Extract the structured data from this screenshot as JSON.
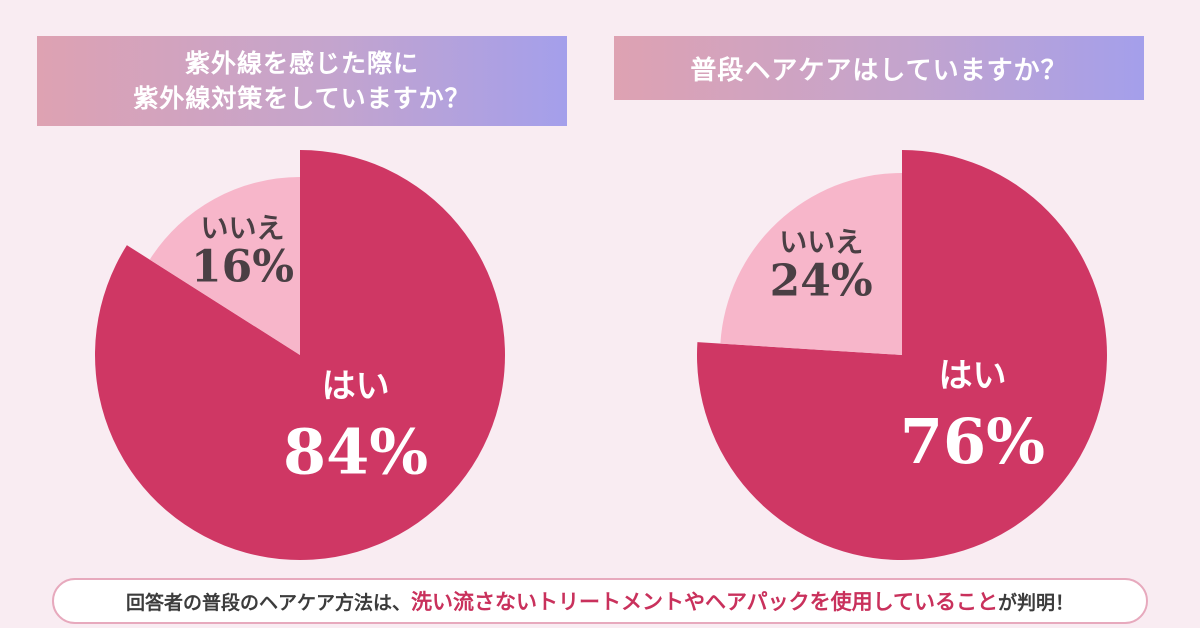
{
  "colors": {
    "yes": "#cf3764",
    "no": "#f7b6ca",
    "yes_text": "#ffffff",
    "no_text": "#4a3f44"
  },
  "footer": {
    "prefix": "回答者の普段のヘアケア方法は、",
    "highlight": "洗い流さないトリートメントやヘアパックを使用していること",
    "suffix": "が判明！"
  },
  "chart_data": [
    {
      "type": "pie",
      "title_lines": [
        "紫外線を感じた際に",
        "紫外線対策をしていますか？"
      ],
      "slices": [
        {
          "label": "はい",
          "value": 84,
          "value_text": "84%",
          "color": "#cf3764"
        },
        {
          "label": "いいえ",
          "value": 16,
          "value_text": "16%",
          "color": "#f7b6ca"
        }
      ]
    },
    {
      "type": "pie",
      "title_lines": [
        "普段ヘアケアはしていますか？"
      ],
      "slices": [
        {
          "label": "はい",
          "value": 76,
          "value_text": "76%",
          "color": "#cf3764"
        },
        {
          "label": "いいえ",
          "value": 24,
          "value_text": "24%",
          "color": "#f7b6ca"
        }
      ]
    }
  ]
}
